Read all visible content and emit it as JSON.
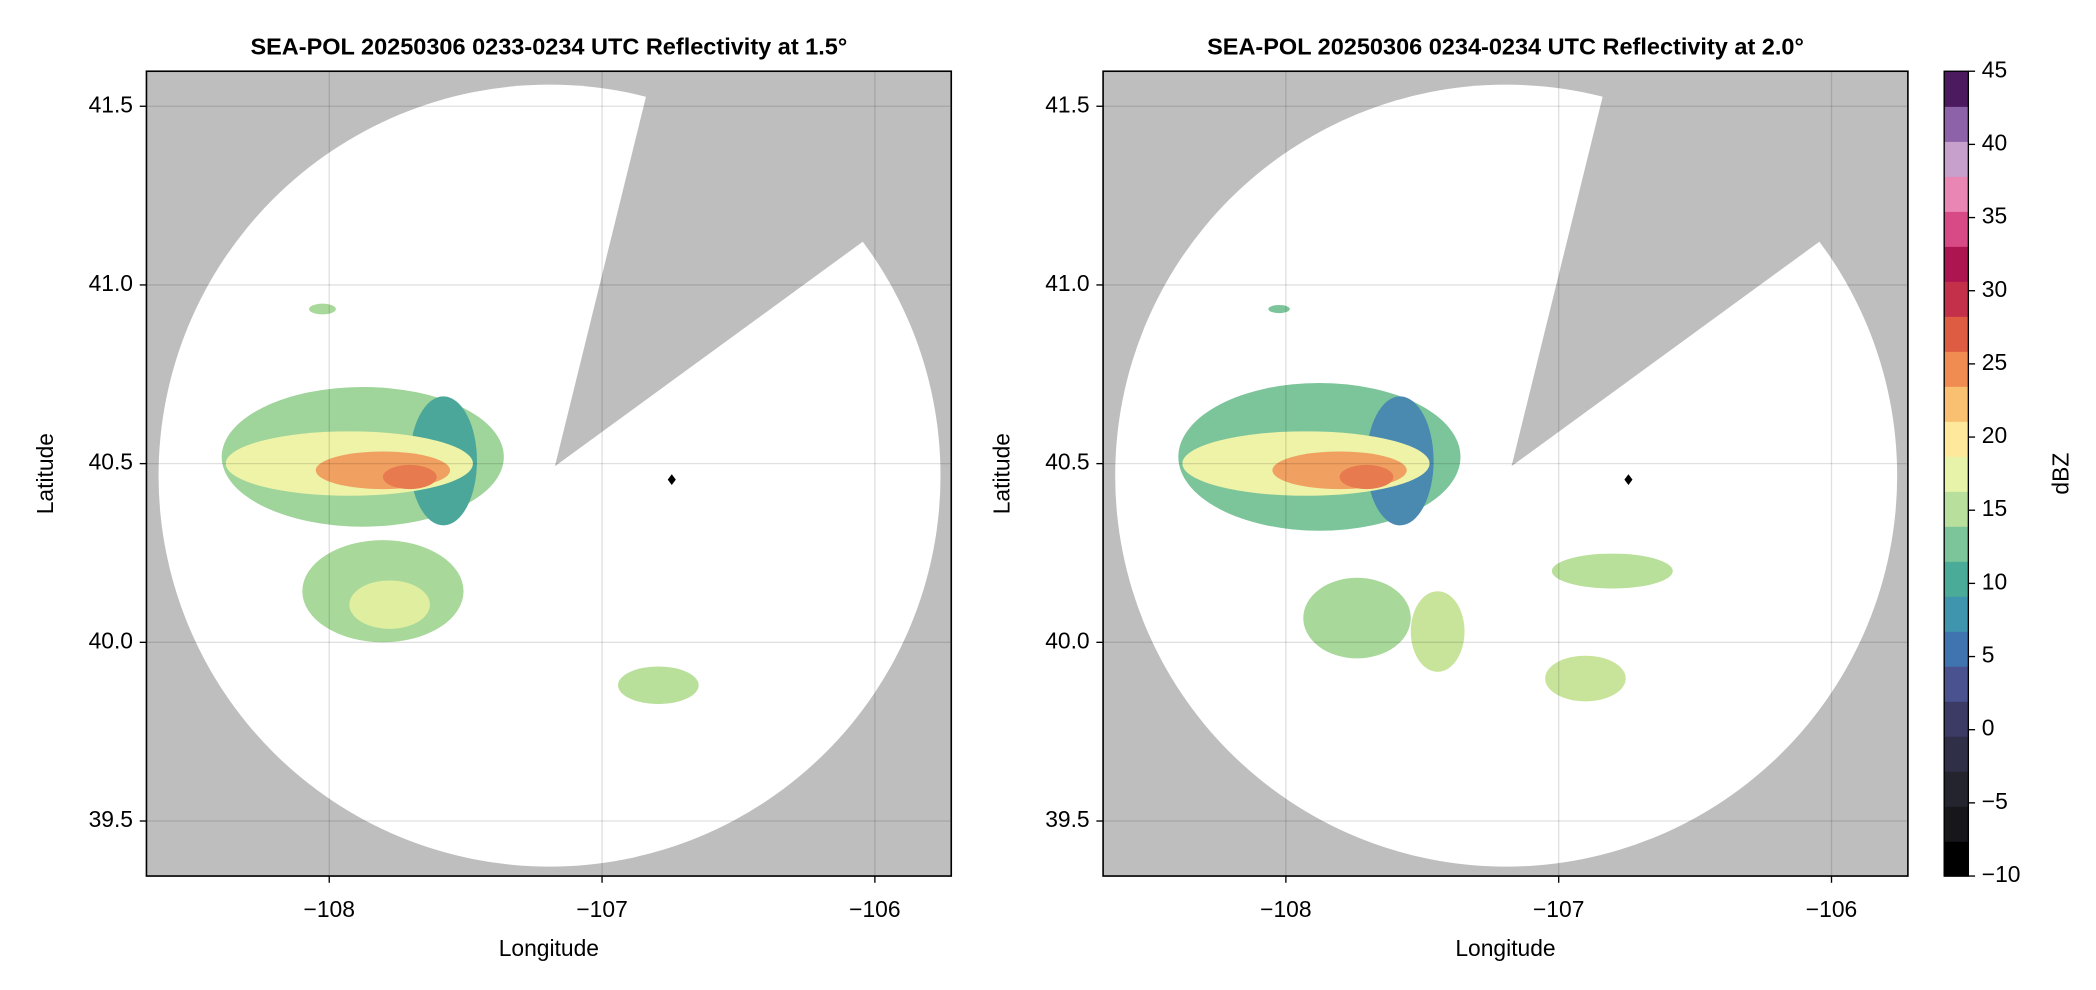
{
  "chart_data": [
    {
      "type": "radar",
      "title": "SEA-POL 20250306 0233-0234 UTC Reflectivity at 1.5°",
      "xlabel": "Longitude",
      "ylabel": "Latitude",
      "xlim": [
        -108.67,
        -105.72
      ],
      "ylim": [
        39.346,
        41.598
      ],
      "xticks": [
        {
          "value": -108,
          "label": "−108"
        },
        {
          "value": -107,
          "label": "−107"
        },
        {
          "value": -106,
          "label": "−106"
        }
      ],
      "yticks": [
        {
          "value": 39.5,
          "label": "39.5"
        },
        {
          "value": 40,
          "label": "40.0"
        },
        {
          "value": 40.5,
          "label": "40.5"
        },
        {
          "value": 41,
          "label": "41.0"
        },
        {
          "value": 41.5,
          "label": "41.5"
        }
      ],
      "grid": true
    },
    {
      "type": "radar",
      "title": "SEA-POL 20250306 0234-0234 UTC Reflectivity at 2.0°",
      "xlabel": "Longitude",
      "ylabel": "Latitude",
      "xlim": [
        -108.67,
        -105.72
      ],
      "ylim": [
        39.346,
        41.598
      ],
      "xticks": [
        {
          "value": -108,
          "label": "−108"
        },
        {
          "value": -107,
          "label": "−107"
        },
        {
          "value": -106,
          "label": "−106"
        }
      ],
      "yticks": [
        {
          "value": 39.5,
          "label": "39.5"
        },
        {
          "value": 40,
          "label": "40.0"
        },
        {
          "value": 40.5,
          "label": "40.5"
        },
        {
          "value": 41,
          "label": "41.0"
        },
        {
          "value": 41.5,
          "label": "41.5"
        }
      ],
      "grid": true,
      "colorbar": {
        "label": "dBZ",
        "lim": [
          -10,
          45
        ],
        "ticks": [
          {
            "value": -10,
            "label": "−10"
          },
          {
            "value": -5,
            "label": "−5"
          },
          0,
          5,
          10,
          15,
          20,
          25,
          30,
          35,
          40,
          45
        ],
        "colors": [
          "#000000",
          "#16161b",
          "#24242f",
          "#2f2f48",
          "#3b3b66",
          "#4a5290",
          "#3f74b0",
          "#3f95ae",
          "#4aab98",
          "#7cc59b",
          "#b8e09c",
          "#e8f3aa",
          "#fde89c",
          "#f8c070",
          "#f08c52",
          "#dd5c42",
          "#c42f4a",
          "#ad1550",
          "#d84a86",
          "#ea86b4",
          "#c8a0cc",
          "#8e62a8",
          "#4c1a5e"
        ]
      }
    }
  ]
}
